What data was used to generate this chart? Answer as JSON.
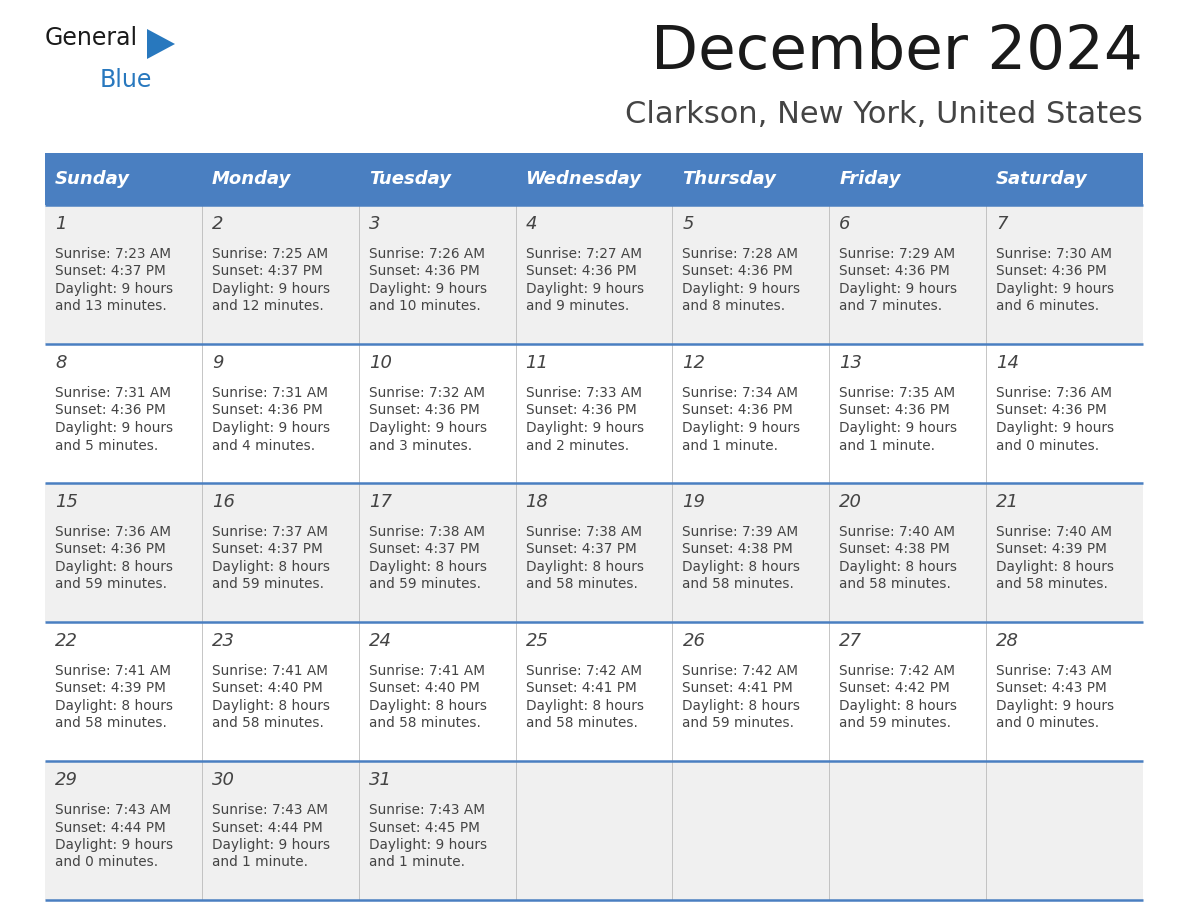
{
  "title": "December 2024",
  "subtitle": "Clarkson, New York, United States",
  "days_of_week": [
    "Sunday",
    "Monday",
    "Tuesday",
    "Wednesday",
    "Thursday",
    "Friday",
    "Saturday"
  ],
  "header_bg": "#4a7fc1",
  "header_text_color": "#FFFFFF",
  "cell_bg_light": "#f0f0f0",
  "cell_bg_white": "#FFFFFF",
  "row_line_color": "#4a7fc1",
  "text_color": "#444444",
  "logo_general_color": "#1a1a1a",
  "logo_blue_color": "#2878be",
  "title_color": "#1a1a1a",
  "subtitle_color": "#444444",
  "weeks": [
    [
      {
        "day": 1,
        "sunrise": "7:23 AM",
        "sunset": "4:37 PM",
        "daylight": "9 hours\nand 13 minutes."
      },
      {
        "day": 2,
        "sunrise": "7:25 AM",
        "sunset": "4:37 PM",
        "daylight": "9 hours\nand 12 minutes."
      },
      {
        "day": 3,
        "sunrise": "7:26 AM",
        "sunset": "4:36 PM",
        "daylight": "9 hours\nand 10 minutes."
      },
      {
        "day": 4,
        "sunrise": "7:27 AM",
        "sunset": "4:36 PM",
        "daylight": "9 hours\nand 9 minutes."
      },
      {
        "day": 5,
        "sunrise": "7:28 AM",
        "sunset": "4:36 PM",
        "daylight": "9 hours\nand 8 minutes."
      },
      {
        "day": 6,
        "sunrise": "7:29 AM",
        "sunset": "4:36 PM",
        "daylight": "9 hours\nand 7 minutes."
      },
      {
        "day": 7,
        "sunrise": "7:30 AM",
        "sunset": "4:36 PM",
        "daylight": "9 hours\nand 6 minutes."
      }
    ],
    [
      {
        "day": 8,
        "sunrise": "7:31 AM",
        "sunset": "4:36 PM",
        "daylight": "9 hours\nand 5 minutes."
      },
      {
        "day": 9,
        "sunrise": "7:31 AM",
        "sunset": "4:36 PM",
        "daylight": "9 hours\nand 4 minutes."
      },
      {
        "day": 10,
        "sunrise": "7:32 AM",
        "sunset": "4:36 PM",
        "daylight": "9 hours\nand 3 minutes."
      },
      {
        "day": 11,
        "sunrise": "7:33 AM",
        "sunset": "4:36 PM",
        "daylight": "9 hours\nand 2 minutes."
      },
      {
        "day": 12,
        "sunrise": "7:34 AM",
        "sunset": "4:36 PM",
        "daylight": "9 hours\nand 1 minute."
      },
      {
        "day": 13,
        "sunrise": "7:35 AM",
        "sunset": "4:36 PM",
        "daylight": "9 hours\nand 1 minute."
      },
      {
        "day": 14,
        "sunrise": "7:36 AM",
        "sunset": "4:36 PM",
        "daylight": "9 hours\nand 0 minutes."
      }
    ],
    [
      {
        "day": 15,
        "sunrise": "7:36 AM",
        "sunset": "4:36 PM",
        "daylight": "8 hours\nand 59 minutes."
      },
      {
        "day": 16,
        "sunrise": "7:37 AM",
        "sunset": "4:37 PM",
        "daylight": "8 hours\nand 59 minutes."
      },
      {
        "day": 17,
        "sunrise": "7:38 AM",
        "sunset": "4:37 PM",
        "daylight": "8 hours\nand 59 minutes."
      },
      {
        "day": 18,
        "sunrise": "7:38 AM",
        "sunset": "4:37 PM",
        "daylight": "8 hours\nand 58 minutes."
      },
      {
        "day": 19,
        "sunrise": "7:39 AM",
        "sunset": "4:38 PM",
        "daylight": "8 hours\nand 58 minutes."
      },
      {
        "day": 20,
        "sunrise": "7:40 AM",
        "sunset": "4:38 PM",
        "daylight": "8 hours\nand 58 minutes."
      },
      {
        "day": 21,
        "sunrise": "7:40 AM",
        "sunset": "4:39 PM",
        "daylight": "8 hours\nand 58 minutes."
      }
    ],
    [
      {
        "day": 22,
        "sunrise": "7:41 AM",
        "sunset": "4:39 PM",
        "daylight": "8 hours\nand 58 minutes."
      },
      {
        "day": 23,
        "sunrise": "7:41 AM",
        "sunset": "4:40 PM",
        "daylight": "8 hours\nand 58 minutes."
      },
      {
        "day": 24,
        "sunrise": "7:41 AM",
        "sunset": "4:40 PM",
        "daylight": "8 hours\nand 58 minutes."
      },
      {
        "day": 25,
        "sunrise": "7:42 AM",
        "sunset": "4:41 PM",
        "daylight": "8 hours\nand 58 minutes."
      },
      {
        "day": 26,
        "sunrise": "7:42 AM",
        "sunset": "4:41 PM",
        "daylight": "8 hours\nand 59 minutes."
      },
      {
        "day": 27,
        "sunrise": "7:42 AM",
        "sunset": "4:42 PM",
        "daylight": "8 hours\nand 59 minutes."
      },
      {
        "day": 28,
        "sunrise": "7:43 AM",
        "sunset": "4:43 PM",
        "daylight": "9 hours\nand 0 minutes."
      }
    ],
    [
      {
        "day": 29,
        "sunrise": "7:43 AM",
        "sunset": "4:44 PM",
        "daylight": "9 hours\nand 0 minutes."
      },
      {
        "day": 30,
        "sunrise": "7:43 AM",
        "sunset": "4:44 PM",
        "daylight": "9 hours\nand 1 minute."
      },
      {
        "day": 31,
        "sunrise": "7:43 AM",
        "sunset": "4:45 PM",
        "daylight": "9 hours\nand 1 minute."
      },
      null,
      null,
      null,
      null
    ]
  ]
}
